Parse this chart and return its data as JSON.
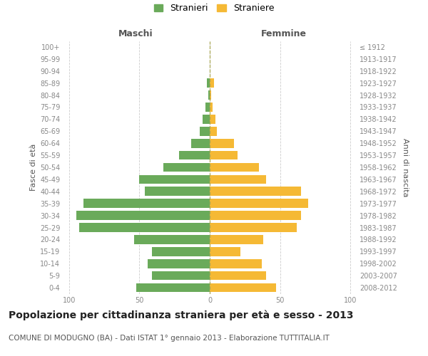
{
  "age_groups": [
    "0-4",
    "5-9",
    "10-14",
    "15-19",
    "20-24",
    "25-29",
    "30-34",
    "35-39",
    "40-44",
    "45-49",
    "50-54",
    "55-59",
    "60-64",
    "65-69",
    "70-74",
    "75-79",
    "80-84",
    "85-89",
    "90-94",
    "95-99",
    "100+"
  ],
  "birth_years": [
    "2008-2012",
    "2003-2007",
    "1998-2002",
    "1993-1997",
    "1988-1992",
    "1983-1987",
    "1978-1982",
    "1973-1977",
    "1968-1972",
    "1963-1967",
    "1958-1962",
    "1953-1957",
    "1948-1952",
    "1943-1947",
    "1938-1942",
    "1933-1937",
    "1928-1932",
    "1923-1927",
    "1918-1922",
    "1913-1917",
    "≤ 1912"
  ],
  "maschi": [
    52,
    41,
    44,
    41,
    54,
    93,
    95,
    90,
    46,
    50,
    33,
    22,
    13,
    7,
    5,
    3,
    1,
    2,
    0,
    0,
    0
  ],
  "femmine": [
    47,
    40,
    37,
    22,
    38,
    62,
    65,
    70,
    65,
    40,
    35,
    20,
    17,
    5,
    4,
    2,
    1,
    3,
    0,
    0,
    0
  ],
  "maschi_color": "#6aaa5a",
  "femmine_color": "#f5b935",
  "background_color": "#ffffff",
  "grid_color": "#cccccc",
  "text_color": "#888888",
  "title": "Popolazione per cittadinanza straniera per età e sesso - 2013",
  "subtitle": "COMUNE DI MODUGNO (BA) - Dati ISTAT 1° gennaio 2013 - Elaborazione TUTTITALIA.IT",
  "xlabel_left": "Maschi",
  "xlabel_right": "Femmine",
  "ylabel_left": "Fasce di età",
  "ylabel_right": "Anni di nascita",
  "legend_maschi": "Stranieri",
  "legend_femmine": "Straniere",
  "xlim": 105,
  "bar_height": 0.75,
  "center_line_color": "#aaa855",
  "title_fontsize": 10,
  "subtitle_fontsize": 7.5,
  "header_fontsize": 9,
  "label_fontsize": 8,
  "tick_fontsize": 7,
  "legend_fontsize": 9
}
